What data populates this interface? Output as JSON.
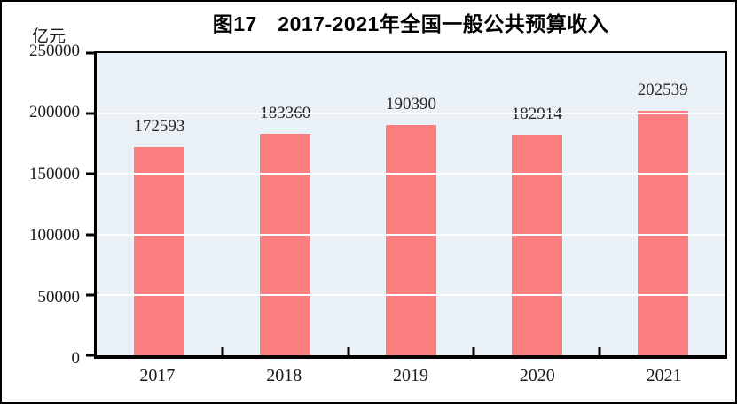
{
  "chart_data": {
    "type": "bar",
    "title": "图17　2017-2021年全国一般公共预算收入",
    "unit_label": "亿元",
    "categories": [
      "2017",
      "2018",
      "2019",
      "2020",
      "2021"
    ],
    "values": [
      172593,
      183360,
      190390,
      182914,
      202539
    ],
    "data_labels": [
      "172593",
      "183360",
      "190390",
      "182914",
      "202539"
    ],
    "y_ticks": [
      "250000",
      "200000",
      "150000",
      "100000",
      "50000",
      "0"
    ],
    "ylim": [
      0,
      250000
    ],
    "xlabel": "",
    "ylabel": "亿元",
    "grid": true,
    "legend_position": "none",
    "colors": {
      "bar": "#fc7f7f",
      "plot_background": "#ebf2f7",
      "gridline": "#ffffff",
      "axis": "#000000",
      "text": "#1a1a1a"
    }
  }
}
